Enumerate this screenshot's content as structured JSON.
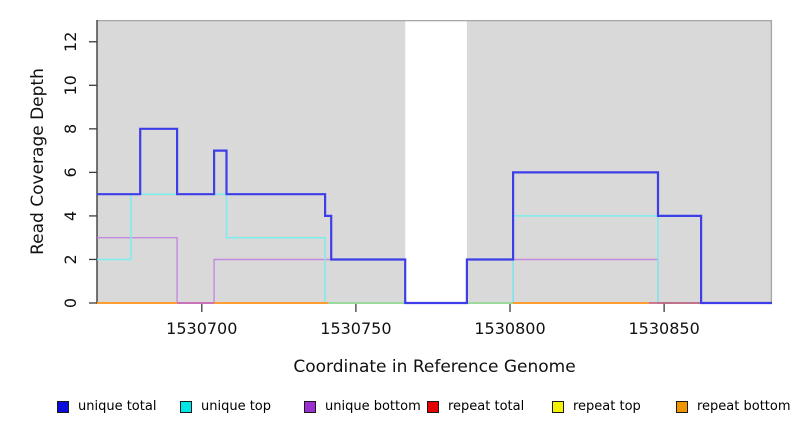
{
  "chart_data": {
    "type": "line",
    "subtype": "step-coverage",
    "title": "",
    "xlabel": "Coordinate in Reference Genome",
    "ylabel": "Read Coverage Depth",
    "xlim": [
      1530666,
      1530885
    ],
    "ylim": [
      0,
      13
    ],
    "x_ticks": [
      "1530700",
      "1530750",
      "1530800",
      "1530850"
    ],
    "x_tick_values": [
      1530700,
      1530750,
      1530800,
      1530850
    ],
    "y_ticks": [
      "0",
      "2",
      "4",
      "6",
      "8",
      "10",
      "12"
    ],
    "y_tick_values": [
      0,
      2,
      4,
      6,
      8,
      10,
      12
    ],
    "grid": false,
    "panel_color": "#d9d9d9",
    "border_color": "#a6a6a6",
    "axis_color": "#3c3c3c",
    "zero_coverage_gap": {
      "from": 1530766,
      "to": 1530786,
      "color": "#ffffff"
    },
    "series": [
      {
        "name": "unique bottom",
        "color": "#c489df",
        "width": 1.4,
        "z": 1,
        "steps": [
          [
            1530666,
            3
          ],
          [
            1530692,
            0
          ],
          [
            1530704,
            2
          ],
          [
            1530766,
            0
          ],
          [
            1530801,
            2
          ],
          [
            1530848,
            0
          ]
        ],
        "end": 1530885
      },
      {
        "name": "unique top",
        "color": "#7dedec",
        "width": 1.5,
        "z": 2,
        "steps": [
          [
            1530666,
            2
          ],
          [
            1530677,
            5
          ],
          [
            1530708,
            3
          ],
          [
            1530740,
            0
          ],
          [
            1530801,
            4
          ],
          [
            1530848,
            0
          ]
        ],
        "end": 1530885
      },
      {
        "name": "repeat top",
        "color": "#f2f200",
        "width": 1.4,
        "z": 3,
        "steps": [
          [
            1530666,
            0
          ]
        ],
        "end": 1530845
      },
      {
        "name": "repeat bottom",
        "color": "#ff9d33",
        "width": 1.9,
        "z": 4,
        "steps": [
          [
            1530666,
            0
          ]
        ],
        "end": 1530845
      },
      {
        "name": "repeat total",
        "color": "#c5506b",
        "width": 1.6,
        "z": 5,
        "steps": [
          [
            1530845,
            0
          ]
        ],
        "end": 1530862
      },
      {
        "name": "unique total",
        "color": "#3e3ee8",
        "width": 2.2,
        "z": 7,
        "steps": [
          [
            1530666,
            5
          ],
          [
            1530680,
            8
          ],
          [
            1530692,
            5
          ],
          [
            1530704,
            7
          ],
          [
            1530708,
            5
          ],
          [
            1530740,
            4
          ],
          [
            1530742,
            2
          ],
          [
            1530766,
            0
          ],
          [
            1530786,
            2
          ],
          [
            1530801,
            6
          ],
          [
            1530848,
            4
          ],
          [
            1530862,
            0
          ]
        ],
        "end": 1530885
      }
    ],
    "overlay_segments": [
      {
        "at": 0,
        "from": 1530692,
        "to": 1530704,
        "color": "#c973b8",
        "width": 1.9
      },
      {
        "at": 0,
        "from": 1530741,
        "to": 1530766,
        "color": "#9cd99c",
        "width": 2.0
      },
      {
        "at": 0,
        "from": 1530786,
        "to": 1530801,
        "color": "#9cd99c",
        "width": 2.0
      }
    ],
    "legend": {
      "position": "bottom",
      "items": [
        {
          "label": "unique total",
          "color": "#0b0bdb"
        },
        {
          "label": "unique top",
          "color": "#00e6e6"
        },
        {
          "label": "unique bottom",
          "color": "#9a30cf"
        },
        {
          "label": "repeat total",
          "color": "#e60000"
        },
        {
          "label": "repeat top",
          "color": "#f2f200"
        },
        {
          "label": "repeat bottom",
          "color": "#f09500"
        }
      ]
    }
  }
}
